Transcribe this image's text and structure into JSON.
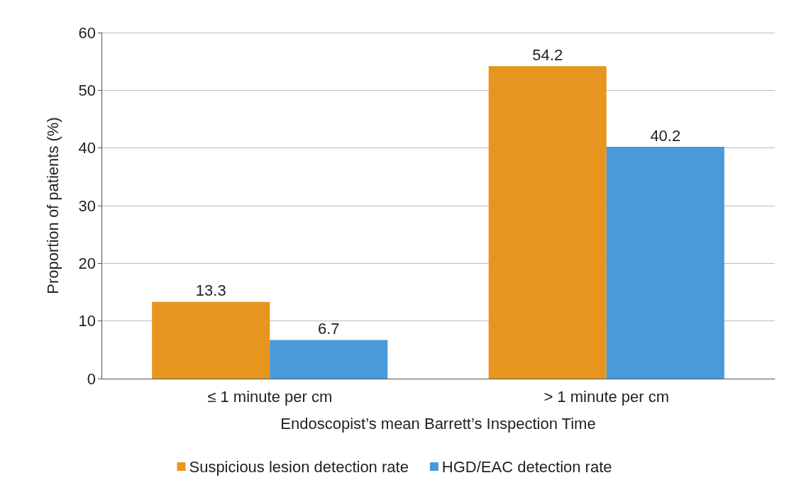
{
  "chart_data": {
    "type": "bar",
    "categories": [
      "≤ 1 minute per cm",
      "> 1 minute per cm"
    ],
    "series": [
      {
        "name": "Suspicious lesion detection rate",
        "color": "#e8951f",
        "values": [
          13.3,
          54.2
        ]
      },
      {
        "name": "HGD/EAC detection rate",
        "color": "#4a9ad9",
        "values": [
          6.7,
          40.2
        ]
      }
    ],
    "xlabel": "Endoscopist’s mean Barrett’s Inspection Time",
    "ylabel": "Proportion of patients (%)",
    "ylim": [
      0,
      60
    ],
    "yticks": [
      0,
      10,
      20,
      30,
      40,
      50,
      60
    ],
    "grid": "y",
    "legend": "bottom",
    "data_labels": true
  }
}
